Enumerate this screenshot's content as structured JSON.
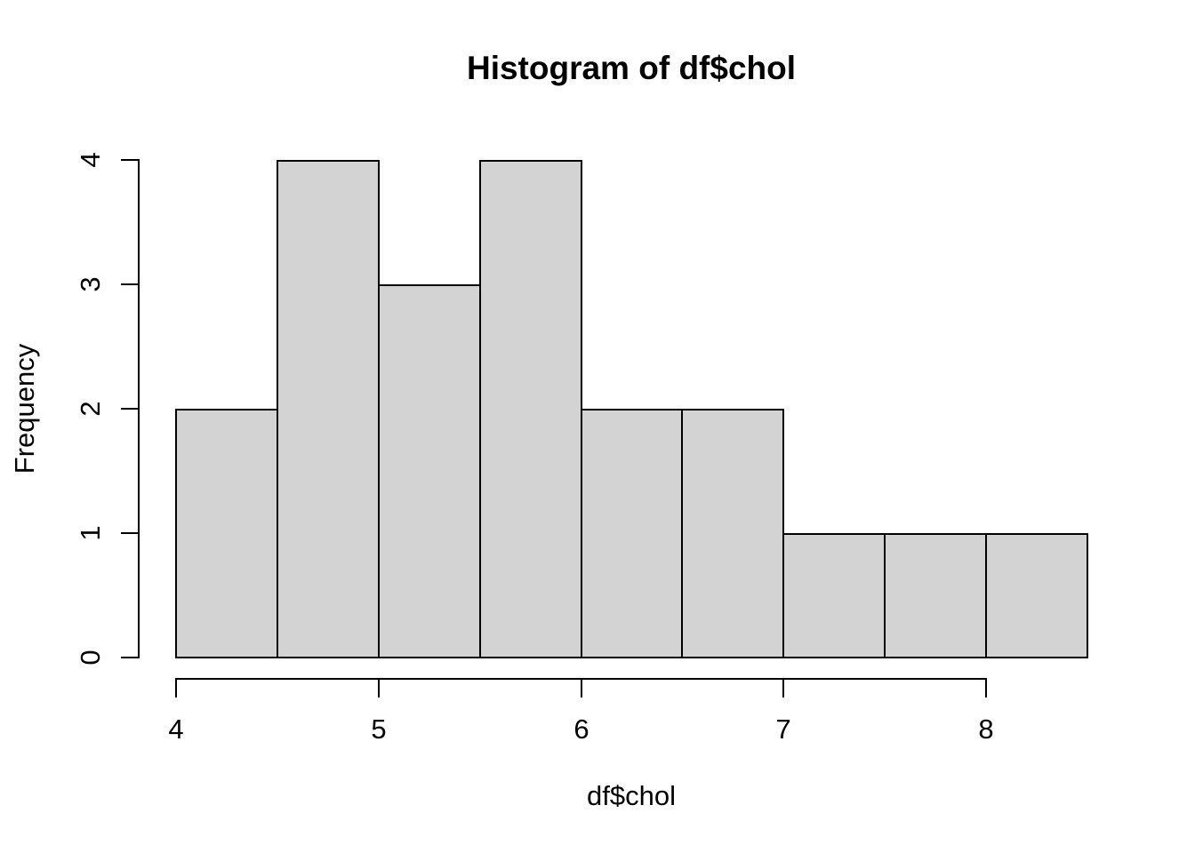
{
  "chart_data": {
    "type": "bar",
    "subtype": "histogram",
    "title": "Histogram of df$chol",
    "xlabel": "df$chol",
    "ylabel": "Frequency",
    "breaks": [
      4,
      4.5,
      5,
      5.5,
      6,
      6.5,
      7,
      7.5,
      8,
      8.5
    ],
    "counts": [
      2,
      4,
      3,
      4,
      2,
      2,
      1,
      1,
      1
    ],
    "x_ticks": [
      "4",
      "5",
      "6",
      "7",
      "8"
    ],
    "x_tick_values": [
      4,
      5,
      6,
      7,
      8
    ],
    "y_ticks": [
      "0",
      "1",
      "2",
      "3",
      "4"
    ],
    "y_tick_values": [
      0,
      1,
      2,
      3,
      4
    ],
    "xlim": [
      4,
      8.5
    ],
    "ylim": [
      0,
      4
    ],
    "grid": false,
    "legend_position": "none",
    "bar_fill": "#d3d3d3",
    "bar_border": "#000000",
    "text_color": "#000000",
    "background": "#ffffff"
  }
}
